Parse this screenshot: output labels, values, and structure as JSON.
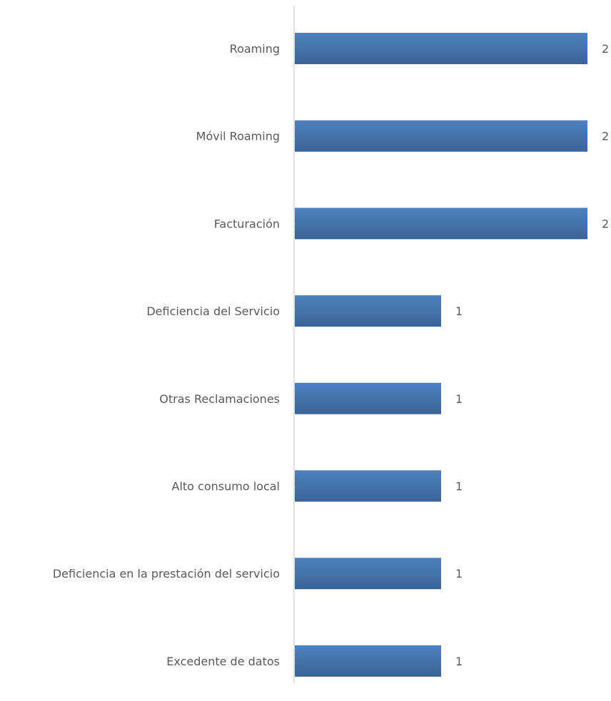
{
  "chart_data": {
    "type": "bar",
    "orientation": "horizontal",
    "categories": [
      "Roaming",
      "Móvil Roaming",
      "Facturación",
      "Deficiencia del Servicio",
      "Otras Reclamaciones",
      "Alto consumo local",
      "Deficiencia en la prestación del servicio",
      "Excedente de datos"
    ],
    "values": [
      2,
      2,
      2,
      1,
      1,
      1,
      1,
      1
    ],
    "title": "",
    "xlabel": "",
    "ylabel": "",
    "xlim": [
      0,
      2
    ],
    "grid": false,
    "legend": "none",
    "data_labels": true,
    "colors": {
      "bar_top": "#4F81BD",
      "bar_bottom": "#3A6498",
      "axis": "#D9D9D9",
      "text": "#595959"
    }
  }
}
